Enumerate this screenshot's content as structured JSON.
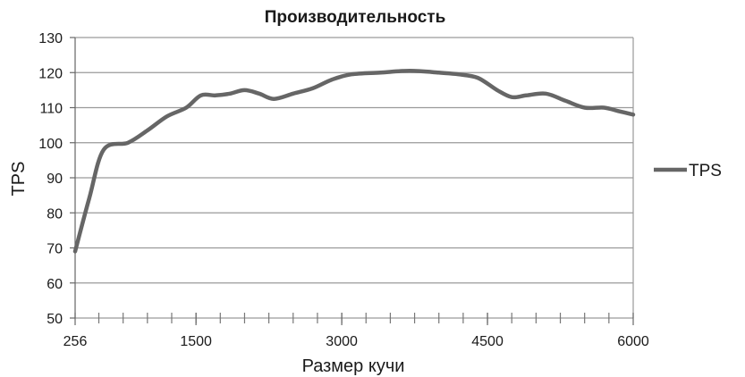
{
  "chart_data": {
    "type": "line",
    "title": "Производительность",
    "xlabel": "Размер кучи",
    "ylabel": "TPS",
    "xlim": [
      256,
      6000
    ],
    "ylim": [
      50,
      130
    ],
    "x_ticks": [
      256,
      1500,
      3000,
      4500,
      6000
    ],
    "y_ticks": [
      50,
      60,
      70,
      80,
      90,
      100,
      110,
      120,
      130
    ],
    "grid": "horizontal",
    "legend_position": "right",
    "series": [
      {
        "name": "TPS",
        "color": "#666666",
        "x": [
          256,
          400,
          550,
          800,
          1000,
          1200,
          1400,
          1550,
          1700,
          1850,
          2000,
          2150,
          2300,
          2500,
          2700,
          2900,
          3100,
          3400,
          3700,
          4000,
          4200,
          4400,
          4600,
          4750,
          4900,
          5100,
          5300,
          5500,
          5700,
          5850,
          6000
        ],
        "values": [
          69,
          84,
          98,
          100,
          103.5,
          107.5,
          110,
          113.5,
          113.5,
          114,
          115,
          114,
          112.5,
          114,
          115.5,
          118,
          119.5,
          120,
          120.5,
          120,
          119.5,
          118.5,
          115,
          113,
          113.5,
          114,
          112,
          110,
          110,
          109,
          108
        ]
      }
    ]
  }
}
